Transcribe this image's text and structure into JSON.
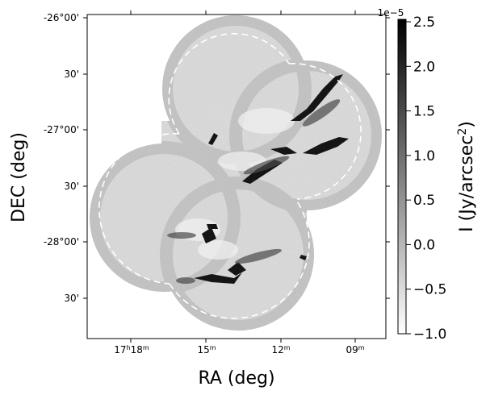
{
  "axes": {
    "xlabel": "RA (deg)",
    "ylabel": "DEC (deg)",
    "x_ticks": [
      {
        "base": "17",
        "h": "h",
        "main": "18",
        "unit": "m"
      },
      {
        "main": "15",
        "unit": "m"
      },
      {
        "main": "12",
        "unit": "m"
      },
      {
        "main": "09",
        "unit": "m"
      }
    ],
    "y_ticks": [
      "-26°00'",
      "30'",
      "-27°00'",
      "30'",
      "-28°00'",
      "30'"
    ]
  },
  "colorbar": {
    "label_main": "I (Jy/arcsec",
    "label_sup": "2",
    "label_end": ")",
    "multiplier": "1e−5",
    "ticks": [
      "2.5",
      "2.0",
      "1.5",
      "1.0",
      "0.5",
      "0.0",
      "−0.5",
      "−1.0"
    ],
    "colors": {
      "high": "#000000",
      "low": "#ffffff"
    }
  },
  "image": {
    "description_colors": {
      "background": "#d9d9d9",
      "filament": "#111111",
      "contour": "#ffffff"
    }
  }
}
